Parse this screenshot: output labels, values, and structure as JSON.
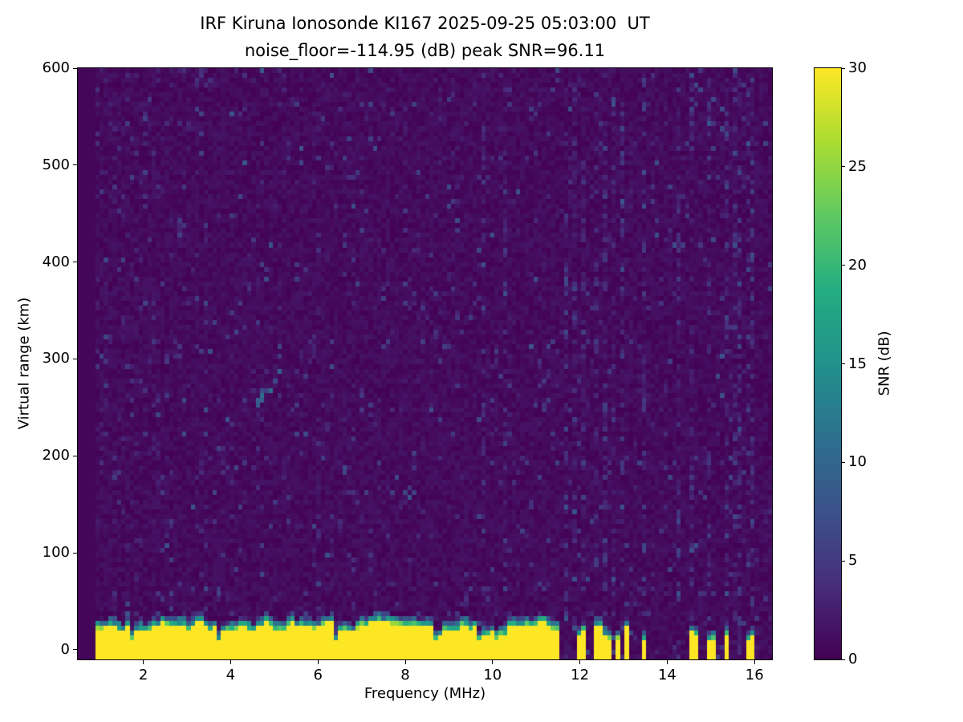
{
  "chart_data": {
    "type": "heatmap",
    "title": "IRF Kiruna Ionosonde KI167 2025-09-25 05:03:00  UT",
    "subtitle": "noise_floor=-114.95 (dB) peak SNR=96.11",
    "station": "IRF Kiruna Ionosonde KI167",
    "timestamp_ut": "2025-09-25 05:03:00",
    "noise_floor_db": -114.95,
    "peak_snr_db": 96.11,
    "xlabel": "Frequency (MHz)",
    "ylabel": "Virtual range (km)",
    "x_range_mhz": [
      0.5,
      16.4
    ],
    "y_range_km": [
      -10,
      600
    ],
    "x_ticks": [
      2,
      4,
      6,
      8,
      10,
      12,
      14,
      16
    ],
    "y_ticks": [
      0,
      100,
      200,
      300,
      400,
      500,
      600
    ],
    "colorbar": {
      "label": "SNR (dB)",
      "range": [
        0,
        30
      ],
      "ticks": [
        0,
        5,
        10,
        15,
        20,
        25,
        30
      ],
      "colormap": "viridis",
      "colormap_stops": [
        {
          "t": 0.0,
          "rgb": [
            68,
            1,
            84
          ]
        },
        {
          "t": 0.125,
          "rgb": [
            71,
            45,
            123
          ]
        },
        {
          "t": 0.25,
          "rgb": [
            59,
            82,
            139
          ]
        },
        {
          "t": 0.375,
          "rgb": [
            45,
            112,
            142
          ]
        },
        {
          "t": 0.5,
          "rgb": [
            33,
            145,
            140
          ]
        },
        {
          "t": 0.625,
          "rgb": [
            35,
            173,
            129
          ]
        },
        {
          "t": 0.75,
          "rgb": [
            94,
            201,
            98
          ]
        },
        {
          "t": 0.875,
          "rgb": [
            170,
            220,
            50
          ]
        },
        {
          "t": 1.0,
          "rgb": [
            253,
            231,
            37
          ]
        }
      ]
    },
    "features": {
      "background_snr_db": [
        0,
        2
      ],
      "speckle_max_snr_db": 8,
      "data_start_freq_mhz": 0.9,
      "ground_clutter_band": {
        "freq_start_mhz": 0.9,
        "freq_end_mhz": 11.55,
        "top_km_mean": 28,
        "snr_db": 30
      },
      "intermittent_band": {
        "freq_start_mhz": 11.55,
        "freq_end_mhz": 13.1,
        "presence": 0.55
      },
      "hf_sparse_band_freqs_mhz": [
        13.45,
        14.6,
        15.0,
        15.35,
        15.9
      ],
      "interference_stripe_freqs_mhz": [
        9.75,
        10.3,
        11.7,
        11.9,
        12.1,
        12.35,
        12.55,
        12.75,
        12.95,
        13.45,
        14.25,
        14.6,
        15.0,
        15.35,
        15.6,
        15.9
      ],
      "faint_echo_trace": {
        "freq_mhz": [
          4.6,
          5.3
        ],
        "range_km": [
          255,
          295
        ]
      }
    }
  }
}
